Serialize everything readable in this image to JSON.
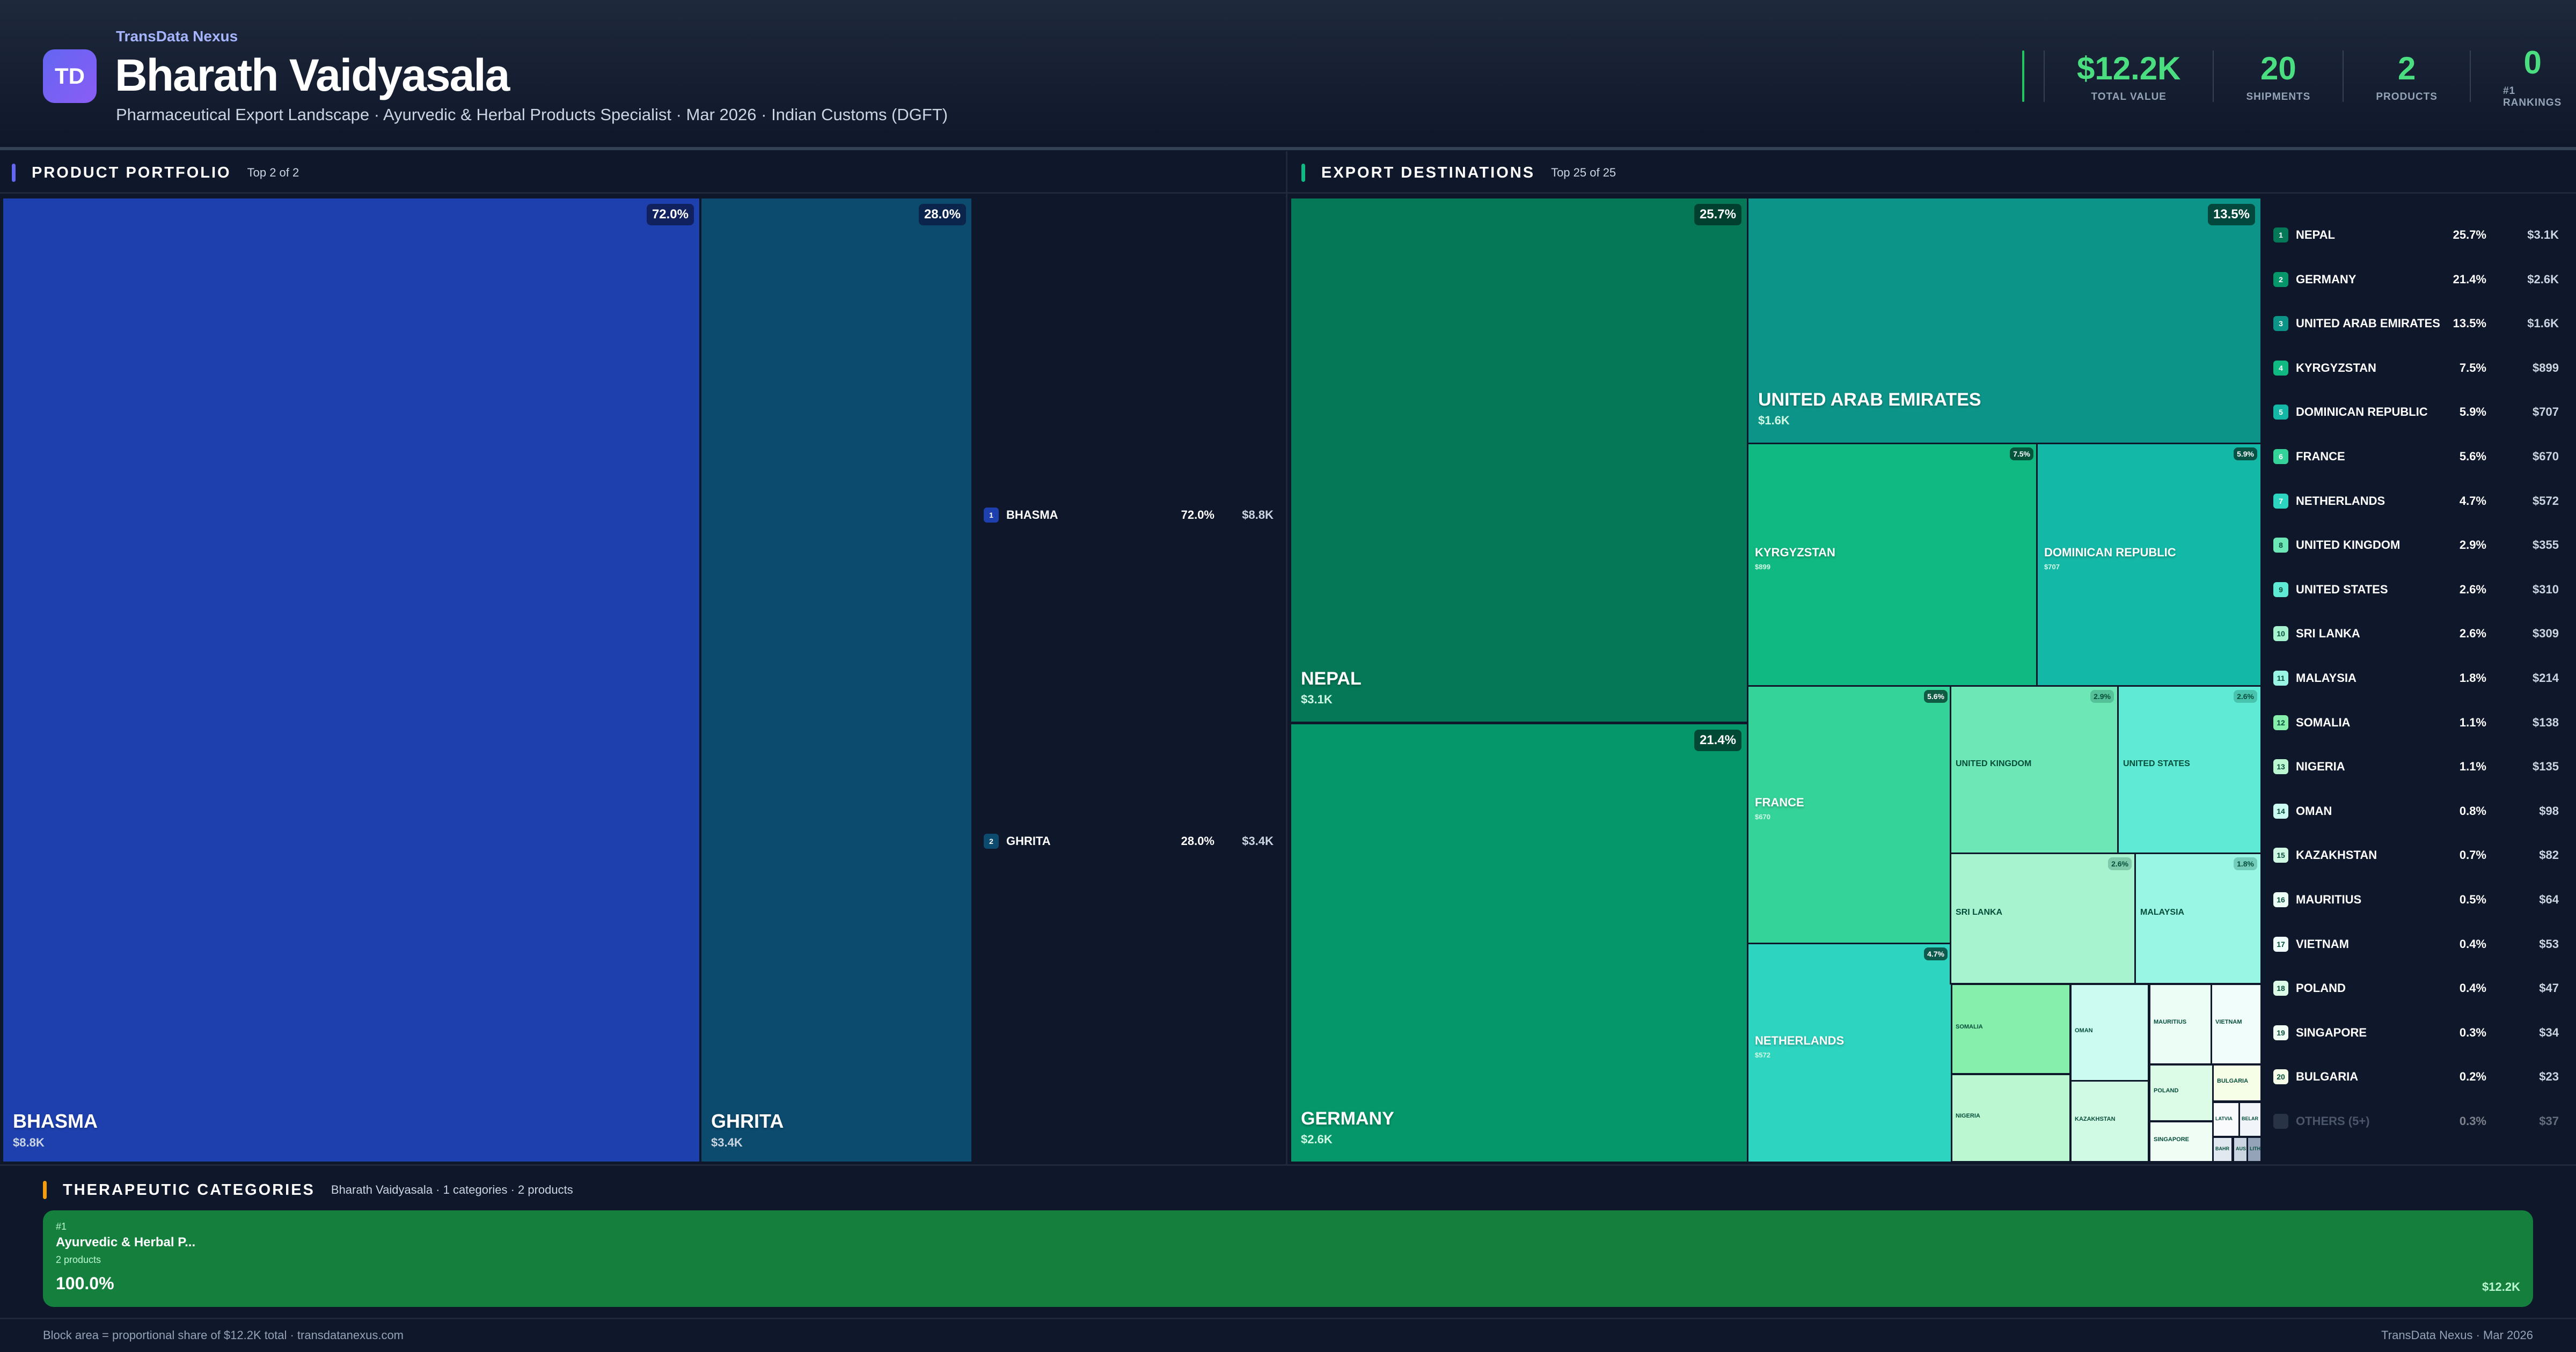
{
  "header": {
    "logo_text": "TD",
    "brand": "TransData Nexus",
    "title": "Bharath Vaidyasala",
    "subtitle": "Pharmaceutical Export Landscape · Ayurvedic & Herbal Products Specialist · Mar 2026 · Indian Customs (DGFT)",
    "stats": [
      {
        "value": "$12.2K",
        "label": "TOTAL VALUE"
      },
      {
        "value": "20",
        "label": "SHIPMENTS"
      },
      {
        "value": "2",
        "label": "PRODUCTS"
      },
      {
        "value": "0",
        "label": "#1 RANKINGS"
      }
    ]
  },
  "colors": {
    "accent_products": "#6366f1",
    "accent_destinations": "#10b981",
    "accent_categories": "#f59e0b",
    "stat_green": "#4ade80"
  },
  "products": {
    "title": "PRODUCT PORTFOLIO",
    "subtitle": "Top 2 of 2",
    "items": [
      {
        "rank": "1",
        "name": "BHASMA",
        "pct": "72.0%",
        "value": "$8.8K",
        "share": 72.0,
        "color": "#1e40af"
      },
      {
        "rank": "2",
        "name": "GHRITA",
        "pct": "28.0%",
        "value": "$3.4K",
        "share": 28.0,
        "color": "#0c4a6e"
      }
    ]
  },
  "destinations": {
    "title": "EXPORT DESTINATIONS",
    "subtitle": "Top 25 of 25",
    "items": [
      {
        "rank": "1",
        "name": "NEPAL",
        "pct": "25.7%",
        "value": "$3.1K",
        "color": "#047857"
      },
      {
        "rank": "2",
        "name": "GERMANY",
        "pct": "21.4%",
        "value": "$2.6K",
        "color": "#059669"
      },
      {
        "rank": "3",
        "name": "UNITED ARAB EMIRATES",
        "pct": "13.5%",
        "value": "$1.6K",
        "color": "#0d9488"
      },
      {
        "rank": "4",
        "name": "KYRGYZSTAN",
        "pct": "7.5%",
        "value": "$899",
        "color": "#10b981"
      },
      {
        "rank": "5",
        "name": "DOMINICAN REPUBLIC",
        "pct": "5.9%",
        "value": "$707",
        "color": "#14b8a6"
      },
      {
        "rank": "6",
        "name": "FRANCE",
        "pct": "5.6%",
        "value": "$670",
        "color": "#34d399"
      },
      {
        "rank": "7",
        "name": "NETHERLANDS",
        "pct": "4.7%",
        "value": "$572",
        "color": "#2dd4bf"
      },
      {
        "rank": "8",
        "name": "UNITED KINGDOM",
        "pct": "2.9%",
        "value": "$355",
        "color": "#6ee7b7"
      },
      {
        "rank": "9",
        "name": "UNITED STATES",
        "pct": "2.6%",
        "value": "$310",
        "color": "#5eead4"
      },
      {
        "rank": "10",
        "name": "SRI LANKA",
        "pct": "2.6%",
        "value": "$309",
        "color": "#a7f3d0"
      },
      {
        "rank": "11",
        "name": "MALAYSIA",
        "pct": "1.8%",
        "value": "$214",
        "color": "#99f6e4"
      },
      {
        "rank": "12",
        "name": "SOMALIA",
        "pct": "1.1%",
        "value": "$138",
        "color": "#86efac"
      },
      {
        "rank": "13",
        "name": "NIGERIA",
        "pct": "1.1%",
        "value": "$135",
        "color": "#bbf7d0"
      },
      {
        "rank": "14",
        "name": "OMAN",
        "pct": "0.8%",
        "value": "$98",
        "color": "#ccfbf1"
      },
      {
        "rank": "15",
        "name": "KAZAKHSTAN",
        "pct": "0.7%",
        "value": "$82",
        "color": "#d1fae5"
      },
      {
        "rank": "16",
        "name": "MAURITIUS",
        "pct": "0.5%",
        "value": "$64",
        "color": "#ecfdf5"
      },
      {
        "rank": "17",
        "name": "VIETNAM",
        "pct": "0.4%",
        "value": "$53",
        "color": "#f0fdfa"
      },
      {
        "rank": "18",
        "name": "POLAND",
        "pct": "0.4%",
        "value": "$47",
        "color": "#dcfce7"
      },
      {
        "rank": "19",
        "name": "SINGAPORE",
        "pct": "0.3%",
        "value": "$34",
        "color": "#f0fdf4"
      },
      {
        "rank": "20",
        "name": "BULGARIA",
        "pct": "0.2%",
        "value": "$23",
        "color": "#f7fee7"
      }
    ],
    "others": {
      "name": "OTHERS (5+)",
      "pct": "0.3%",
      "value": "$37",
      "color": "#475569"
    },
    "small_cells": [
      {
        "name": "LATVIA",
        "color": "#f8fafc"
      },
      {
        "name": "BELAR",
        "color": "#f1f5f9"
      },
      {
        "name": "BAHR",
        "color": "#e2e8f0"
      },
      {
        "name": "AUS",
        "color": "#cbd5e1"
      },
      {
        "name": "LITH",
        "color": "#94a3b8"
      }
    ]
  },
  "categories": {
    "title": "THERAPEUTIC CATEGORIES",
    "subtitle": "Bharath Vaidyasala · 1 categories · 2 products",
    "items": [
      {
        "rank": "#1",
        "name": "Ayurvedic & Herbal P...",
        "count": "2 products",
        "pct": "100.0%",
        "value": "$12.2K",
        "color": "#15803d"
      }
    ]
  },
  "footer": {
    "left": "Block area = proportional share of $12.2K total · transdatanexus.com",
    "right": "TransData Nexus · Mar 2026"
  }
}
